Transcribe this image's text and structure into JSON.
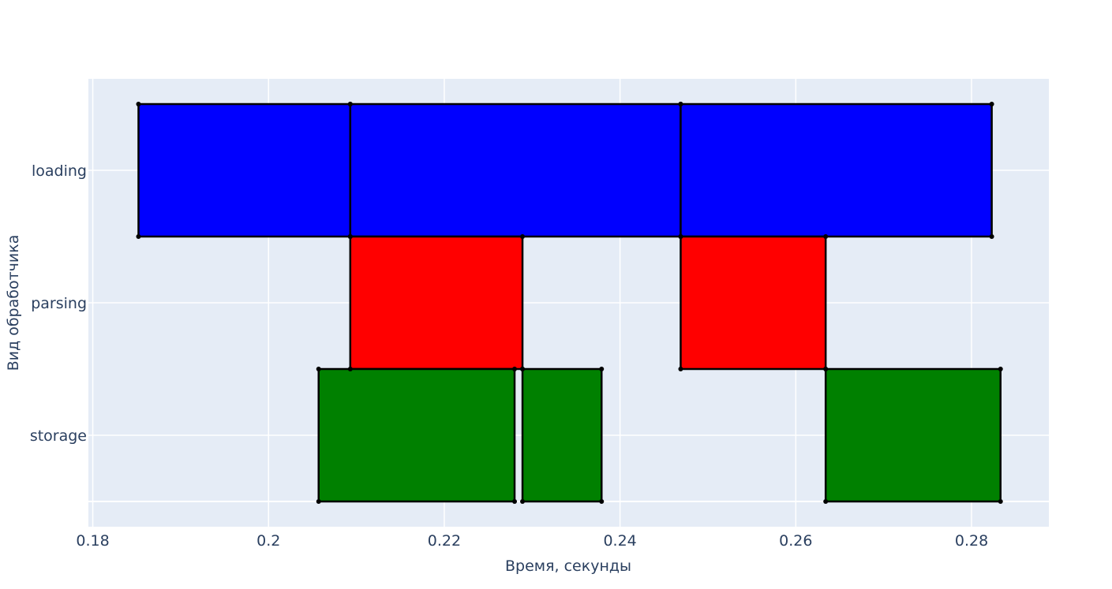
{
  "chart_data": {
    "type": "timeline",
    "xlabel": "Время, секунды",
    "ylabel": "Вид обработчика",
    "categories": [
      "storage",
      "parsing",
      "loading"
    ],
    "xlim": [
      0.1795,
      0.2888
    ],
    "x_ticks": [
      0.18,
      0.2,
      0.22,
      0.24,
      0.26,
      0.28
    ],
    "x_tick_labels": [
      "0.18",
      "0.2",
      "0.22",
      "0.24",
      "0.26",
      "0.28"
    ],
    "grid": true,
    "plot_background": "#e5ecf6",
    "colors": {
      "loading": "#0000ff",
      "parsing": "#ff0000",
      "storage": "#008000"
    },
    "bars": [
      {
        "category": "loading",
        "start": 0.1852,
        "end": 0.2093
      },
      {
        "category": "loading",
        "start": 0.2093,
        "end": 0.2469
      },
      {
        "category": "loading",
        "start": 0.2469,
        "end": 0.2823
      },
      {
        "category": "parsing",
        "start": 0.2093,
        "end": 0.2289
      },
      {
        "category": "parsing",
        "start": 0.2469,
        "end": 0.2634
      },
      {
        "category": "storage",
        "start": 0.2057,
        "end": 0.228
      },
      {
        "category": "storage",
        "start": 0.2289,
        "end": 0.2379
      },
      {
        "category": "storage",
        "start": 0.2634,
        "end": 0.2833
      }
    ]
  }
}
